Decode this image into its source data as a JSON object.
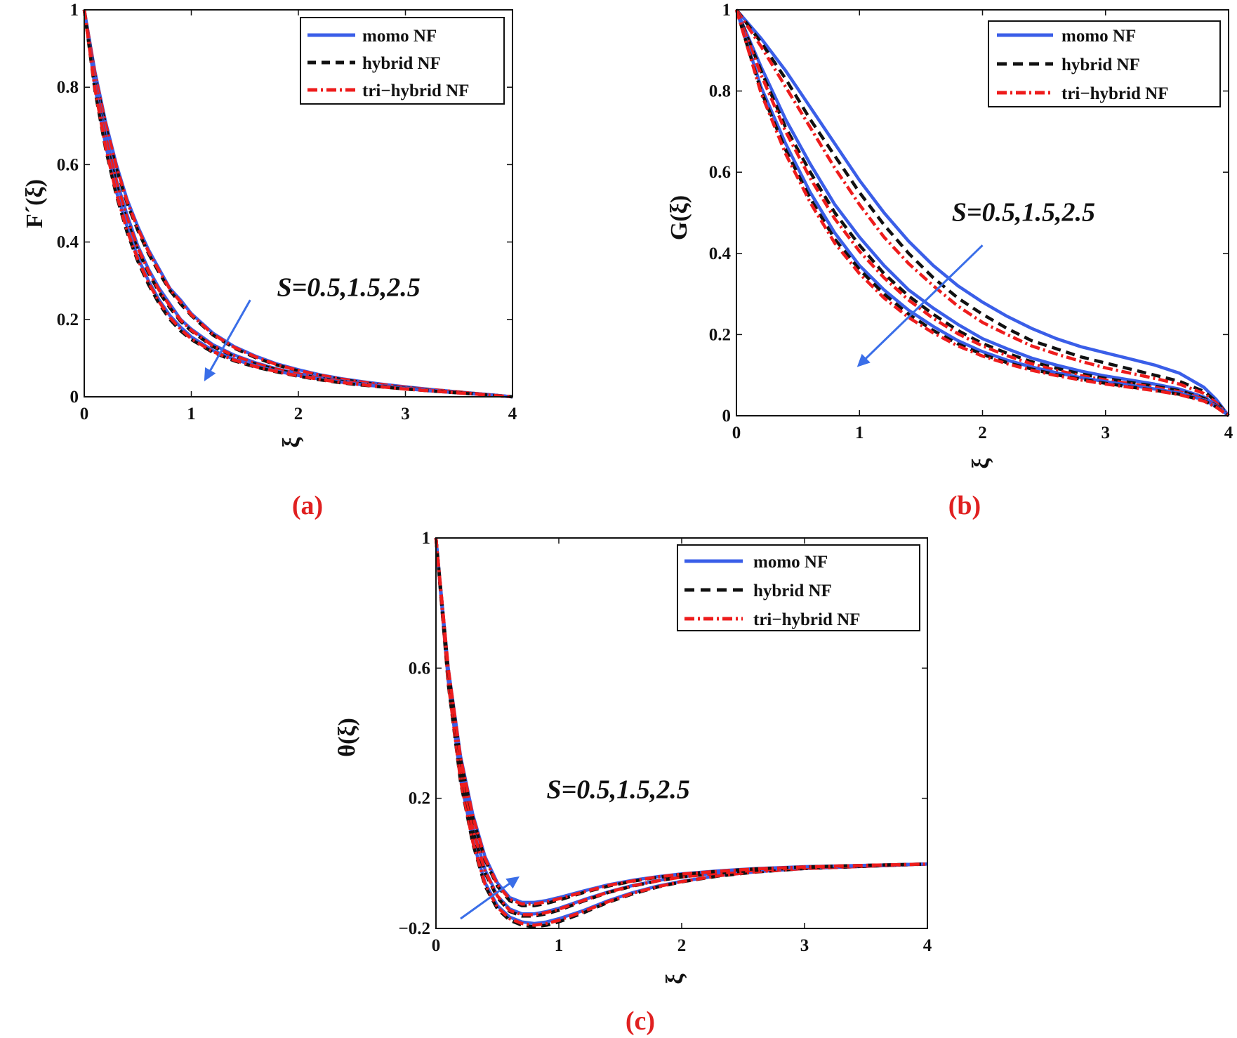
{
  "colors": {
    "mono": "#3a5ee8",
    "hybrid": "#111111",
    "tri": "#ee1c1c",
    "arrow": "#3a6ee8",
    "panel_label": "#e02020"
  },
  "chart_data": [
    {
      "type": "line",
      "panel": "(a)",
      "ylabel": "F´(ξ)",
      "xlabel": "ξ",
      "xlim": [
        0,
        4
      ],
      "ylim": [
        0,
        1
      ],
      "xticks": [
        0,
        1,
        2,
        3,
        4
      ],
      "xtick_labels": [
        "0",
        "1",
        "2",
        "3",
        "4"
      ],
      "yticks": [
        0,
        0.2,
        0.4,
        0.6,
        0.8,
        1
      ],
      "ytick_labels": [
        "0",
        "0.2",
        "0.4",
        "0.6",
        "0.8",
        "1"
      ],
      "legend": {
        "position": "top-right",
        "entries": [
          "momo NF",
          "hybrid NF",
          "tri−hybrid NF"
        ]
      },
      "annotation": {
        "text": "S=0.5,1.5,2.5",
        "x": 1.8,
        "y": 0.26
      },
      "arrow": {
        "from": [
          1.55,
          0.25
        ],
        "to": [
          1.12,
          0.04
        ]
      },
      "x": [
        0,
        0.1,
        0.2,
        0.3,
        0.4,
        0.5,
        0.6,
        0.7,
        0.8,
        0.9,
        1.0,
        1.2,
        1.4,
        1.6,
        1.8,
        2.0,
        2.2,
        2.4,
        2.6,
        2.8,
        3.0,
        3.2,
        3.4,
        3.6,
        3.8,
        4.0
      ],
      "series": [
        {
          "name": "momo NF",
          "S": 0.5,
          "values": [
            1,
            0.84,
            0.71,
            0.6,
            0.51,
            0.44,
            0.38,
            0.33,
            0.28,
            0.25,
            0.215,
            0.165,
            0.13,
            0.105,
            0.085,
            0.07,
            0.057,
            0.047,
            0.039,
            0.032,
            0.026,
            0.02,
            0.015,
            0.01,
            0.005,
            0
          ]
        },
        {
          "name": "hybrid NF",
          "S": 0.5,
          "values": [
            1,
            0.83,
            0.7,
            0.59,
            0.5,
            0.43,
            0.37,
            0.32,
            0.275,
            0.24,
            0.21,
            0.16,
            0.126,
            0.101,
            0.082,
            0.067,
            0.055,
            0.045,
            0.037,
            0.03,
            0.024,
            0.019,
            0.014,
            0.009,
            0.005,
            0
          ]
        },
        {
          "name": "tri−hybrid NF",
          "S": 0.5,
          "values": [
            1,
            0.835,
            0.705,
            0.595,
            0.505,
            0.435,
            0.375,
            0.325,
            0.278,
            0.245,
            0.212,
            0.162,
            0.128,
            0.103,
            0.083,
            0.068,
            0.056,
            0.046,
            0.038,
            0.031,
            0.025,
            0.019,
            0.015,
            0.01,
            0.005,
            0
          ]
        },
        {
          "name": "momo NF",
          "S": 1.5,
          "values": [
            1,
            0.82,
            0.68,
            0.56,
            0.47,
            0.39,
            0.33,
            0.28,
            0.24,
            0.2,
            0.175,
            0.135,
            0.108,
            0.088,
            0.072,
            0.06,
            0.049,
            0.041,
            0.034,
            0.028,
            0.023,
            0.018,
            0.013,
            0.009,
            0.005,
            0
          ]
        },
        {
          "name": "hybrid NF",
          "S": 1.5,
          "values": [
            1,
            0.81,
            0.665,
            0.55,
            0.455,
            0.38,
            0.32,
            0.27,
            0.23,
            0.195,
            0.17,
            0.13,
            0.104,
            0.085,
            0.07,
            0.058,
            0.048,
            0.04,
            0.033,
            0.027,
            0.022,
            0.017,
            0.013,
            0.009,
            0.004,
            0
          ]
        },
        {
          "name": "tri−hybrid NF",
          "S": 1.5,
          "values": [
            1,
            0.815,
            0.672,
            0.555,
            0.462,
            0.385,
            0.325,
            0.275,
            0.235,
            0.198,
            0.172,
            0.132,
            0.106,
            0.086,
            0.071,
            0.059,
            0.048,
            0.04,
            0.033,
            0.027,
            0.022,
            0.017,
            0.013,
            0.009,
            0.004,
            0
          ]
        },
        {
          "name": "momo NF",
          "S": 2.5,
          "values": [
            1,
            0.8,
            0.65,
            0.53,
            0.44,
            0.36,
            0.3,
            0.25,
            0.21,
            0.18,
            0.155,
            0.12,
            0.097,
            0.08,
            0.066,
            0.055,
            0.046,
            0.038,
            0.031,
            0.026,
            0.021,
            0.016,
            0.012,
            0.008,
            0.004,
            0
          ]
        },
        {
          "name": "hybrid NF",
          "S": 2.5,
          "values": [
            1,
            0.79,
            0.64,
            0.52,
            0.425,
            0.35,
            0.29,
            0.24,
            0.2,
            0.17,
            0.148,
            0.115,
            0.093,
            0.077,
            0.064,
            0.053,
            0.044,
            0.036,
            0.03,
            0.025,
            0.02,
            0.016,
            0.012,
            0.008,
            0.004,
            0
          ]
        },
        {
          "name": "tri−hybrid NF",
          "S": 2.5,
          "values": [
            1,
            0.795,
            0.645,
            0.525,
            0.43,
            0.355,
            0.295,
            0.245,
            0.205,
            0.175,
            0.15,
            0.117,
            0.095,
            0.078,
            0.065,
            0.054,
            0.045,
            0.037,
            0.031,
            0.025,
            0.02,
            0.016,
            0.012,
            0.008,
            0.004,
            0
          ]
        }
      ]
    },
    {
      "type": "line",
      "panel": "(b)",
      "ylabel": "G(ξ)",
      "xlabel": "ξ",
      "xlim": [
        0,
        4
      ],
      "ylim": [
        0,
        1
      ],
      "xticks": [
        0,
        1,
        2,
        3,
        4
      ],
      "xtick_labels": [
        "0",
        "1",
        "2",
        "3",
        "4"
      ],
      "yticks": [
        0,
        0.2,
        0.4,
        0.6,
        0.8,
        1
      ],
      "ytick_labels": [
        "0",
        "0.2",
        "0.4",
        "0.6",
        "0.8",
        "1"
      ],
      "legend": {
        "position": "top-right",
        "entries": [
          "momo NF",
          "hybrid NF",
          "tri−hybrid NF"
        ]
      },
      "annotation": {
        "text": "S=0.5,1.5,2.5",
        "x": 1.75,
        "y": 0.48
      },
      "arrow": {
        "from": [
          2.0,
          0.42
        ],
        "to": [
          0.98,
          0.12
        ]
      },
      "x": [
        0,
        0.2,
        0.4,
        0.6,
        0.8,
        1.0,
        1.2,
        1.4,
        1.6,
        1.8,
        2.0,
        2.2,
        2.4,
        2.6,
        2.8,
        3.0,
        3.2,
        3.4,
        3.6,
        3.8,
        3.9,
        4.0
      ],
      "series": [
        {
          "name": "momo NF",
          "S": 0.5,
          "values": [
            1,
            0.93,
            0.85,
            0.76,
            0.67,
            0.58,
            0.5,
            0.43,
            0.37,
            0.32,
            0.28,
            0.245,
            0.215,
            0.19,
            0.17,
            0.155,
            0.14,
            0.125,
            0.105,
            0.07,
            0.04,
            0
          ]
        },
        {
          "name": "hybrid NF",
          "S": 0.5,
          "values": [
            1,
            0.92,
            0.83,
            0.73,
            0.64,
            0.55,
            0.47,
            0.4,
            0.34,
            0.29,
            0.25,
            0.215,
            0.185,
            0.165,
            0.145,
            0.13,
            0.115,
            0.1,
            0.085,
            0.06,
            0.035,
            0
          ]
        },
        {
          "name": "tri−hybrid NF",
          "S": 0.5,
          "values": [
            1,
            0.91,
            0.81,
            0.71,
            0.61,
            0.52,
            0.44,
            0.375,
            0.32,
            0.27,
            0.23,
            0.2,
            0.172,
            0.152,
            0.134,
            0.118,
            0.105,
            0.092,
            0.078,
            0.055,
            0.032,
            0
          ]
        },
        {
          "name": "momo NF",
          "S": 1.5,
          "values": [
            1,
            0.86,
            0.73,
            0.62,
            0.52,
            0.44,
            0.37,
            0.31,
            0.265,
            0.225,
            0.19,
            0.165,
            0.142,
            0.125,
            0.11,
            0.098,
            0.088,
            0.078,
            0.066,
            0.046,
            0.027,
            0
          ]
        },
        {
          "name": "hybrid NF",
          "S": 1.5,
          "values": [
            1,
            0.85,
            0.71,
            0.6,
            0.5,
            0.42,
            0.35,
            0.295,
            0.25,
            0.21,
            0.178,
            0.154,
            0.133,
            0.117,
            0.103,
            0.092,
            0.082,
            0.073,
            0.062,
            0.043,
            0.025,
            0
          ]
        },
        {
          "name": "tri−hybrid NF",
          "S": 1.5,
          "values": [
            1,
            0.84,
            0.7,
            0.585,
            0.485,
            0.405,
            0.34,
            0.285,
            0.24,
            0.202,
            0.172,
            0.148,
            0.128,
            0.112,
            0.099,
            0.088,
            0.079,
            0.07,
            0.059,
            0.041,
            0.024,
            0
          ]
        },
        {
          "name": "momo NF",
          "S": 2.5,
          "values": [
            1,
            0.81,
            0.67,
            0.55,
            0.45,
            0.37,
            0.31,
            0.26,
            0.22,
            0.185,
            0.158,
            0.137,
            0.12,
            0.106,
            0.094,
            0.084,
            0.075,
            0.066,
            0.056,
            0.039,
            0.023,
            0
          ]
        },
        {
          "name": "hybrid NF",
          "S": 2.5,
          "values": [
            1,
            0.8,
            0.655,
            0.535,
            0.435,
            0.36,
            0.3,
            0.25,
            0.21,
            0.177,
            0.151,
            0.131,
            0.115,
            0.101,
            0.09,
            0.08,
            0.071,
            0.063,
            0.053,
            0.037,
            0.022,
            0
          ]
        },
        {
          "name": "tri−hybrid NF",
          "S": 2.5,
          "values": [
            1,
            0.795,
            0.645,
            0.525,
            0.425,
            0.35,
            0.29,
            0.242,
            0.204,
            0.172,
            0.147,
            0.128,
            0.112,
            0.099,
            0.088,
            0.078,
            0.07,
            0.062,
            0.052,
            0.036,
            0.021,
            0
          ]
        }
      ]
    },
    {
      "type": "line",
      "panel": "(c)",
      "ylabel": "θ(ξ)",
      "xlabel": "ξ",
      "xlim": [
        0,
        4
      ],
      "ylim": [
        -0.2,
        1
      ],
      "xticks": [
        0,
        1,
        2,
        3,
        4
      ],
      "xtick_labels": [
        "0",
        "1",
        "2",
        "3",
        "4"
      ],
      "yticks": [
        -0.2,
        0.2,
        0.6,
        1
      ],
      "ytick_labels": [
        "−0.2",
        "0.2",
        "0.6",
        "1"
      ],
      "legend": {
        "position": "top-right",
        "entries": [
          "momo NF",
          "hybrid NF",
          "tri−hybrid NF"
        ]
      },
      "annotation": {
        "text": "S=0.5,1.5,2.5",
        "x": 0.9,
        "y": 0.2
      },
      "arrow": {
        "from": [
          0.2,
          -0.17
        ],
        "to": [
          0.68,
          -0.04
        ]
      },
      "x": [
        0,
        0.1,
        0.2,
        0.3,
        0.4,
        0.5,
        0.6,
        0.7,
        0.8,
        0.9,
        1.0,
        1.2,
        1.4,
        1.6,
        1.8,
        2.0,
        2.3,
        2.6,
        3.0,
        3.5,
        4.0
      ],
      "series": [
        {
          "name": "momo NF",
          "S": 0.5,
          "values": [
            1,
            0.56,
            0.26,
            0.07,
            -0.06,
            -0.13,
            -0.165,
            -0.18,
            -0.185,
            -0.18,
            -0.17,
            -0.145,
            -0.115,
            -0.09,
            -0.07,
            -0.055,
            -0.038,
            -0.026,
            -0.016,
            -0.009,
            -0.002
          ]
        },
        {
          "name": "hybrid NF",
          "S": 0.5,
          "values": [
            1,
            0.55,
            0.25,
            0.06,
            -0.07,
            -0.14,
            -0.175,
            -0.19,
            -0.195,
            -0.19,
            -0.18,
            -0.152,
            -0.12,
            -0.094,
            -0.073,
            -0.057,
            -0.039,
            -0.027,
            -0.016,
            -0.009,
            -0.002
          ]
        },
        {
          "name": "tri−hybrid NF",
          "S": 0.5,
          "values": [
            1,
            0.555,
            0.255,
            0.065,
            -0.065,
            -0.135,
            -0.17,
            -0.185,
            -0.19,
            -0.185,
            -0.175,
            -0.148,
            -0.118,
            -0.092,
            -0.072,
            -0.056,
            -0.038,
            -0.026,
            -0.016,
            -0.009,
            -0.002
          ]
        },
        {
          "name": "momo NF",
          "S": 1.5,
          "values": [
            1,
            0.58,
            0.3,
            0.11,
            -0.02,
            -0.1,
            -0.14,
            -0.155,
            -0.155,
            -0.148,
            -0.138,
            -0.112,
            -0.088,
            -0.068,
            -0.053,
            -0.041,
            -0.029,
            -0.02,
            -0.013,
            -0.007,
            -0.002
          ]
        },
        {
          "name": "hybrid NF",
          "S": 1.5,
          "values": [
            1,
            0.575,
            0.29,
            0.1,
            -0.03,
            -0.105,
            -0.148,
            -0.162,
            -0.162,
            -0.155,
            -0.144,
            -0.116,
            -0.09,
            -0.07,
            -0.054,
            -0.042,
            -0.03,
            -0.021,
            -0.013,
            -0.007,
            -0.002
          ]
        },
        {
          "name": "tri−hybrid NF",
          "S": 1.5,
          "values": [
            1,
            0.578,
            0.295,
            0.105,
            -0.025,
            -0.1,
            -0.145,
            -0.158,
            -0.158,
            -0.151,
            -0.141,
            -0.114,
            -0.089,
            -0.069,
            -0.054,
            -0.042,
            -0.03,
            -0.021,
            -0.013,
            -0.007,
            -0.002
          ]
        },
        {
          "name": "momo NF",
          "S": 2.5,
          "values": [
            1,
            0.6,
            0.33,
            0.15,
            0.02,
            -0.06,
            -0.105,
            -0.12,
            -0.12,
            -0.114,
            -0.105,
            -0.085,
            -0.066,
            -0.052,
            -0.041,
            -0.032,
            -0.023,
            -0.016,
            -0.01,
            -0.006,
            -0.002
          ]
        },
        {
          "name": "hybrid NF",
          "S": 2.5,
          "values": [
            1,
            0.595,
            0.32,
            0.14,
            0.01,
            -0.07,
            -0.115,
            -0.13,
            -0.13,
            -0.123,
            -0.113,
            -0.09,
            -0.07,
            -0.055,
            -0.043,
            -0.034,
            -0.024,
            -0.017,
            -0.011,
            -0.006,
            -0.002
          ]
        },
        {
          "name": "tri−hybrid NF",
          "S": 2.5,
          "values": [
            1,
            0.6,
            0.325,
            0.145,
            0.015,
            -0.065,
            -0.11,
            -0.125,
            -0.125,
            -0.118,
            -0.109,
            -0.088,
            -0.068,
            -0.054,
            -0.042,
            -0.033,
            -0.024,
            -0.017,
            -0.011,
            -0.006,
            -0.002
          ]
        }
      ]
    }
  ]
}
